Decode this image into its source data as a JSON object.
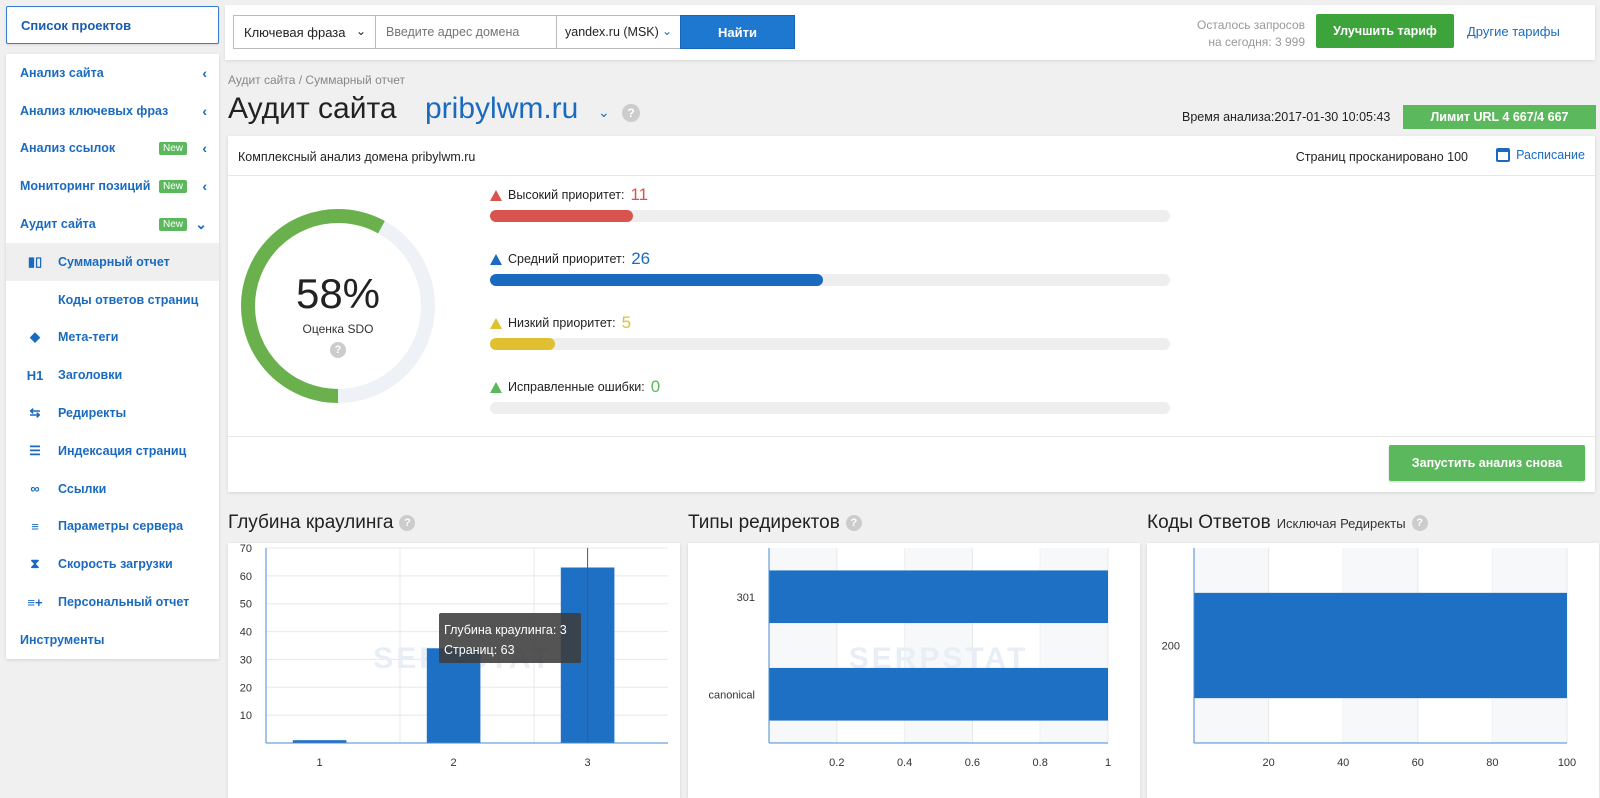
{
  "sidebar": {
    "projects_button": "Список проектов",
    "sections": [
      {
        "label": "Анализ сайта",
        "badge": "",
        "chev": "‹"
      },
      {
        "label": "Анализ ключевых фраз",
        "badge": "",
        "chev": "‹"
      },
      {
        "label": "Анализ ссылок",
        "badge": "New",
        "chev": "‹"
      },
      {
        "label": "Мониторинг позиций",
        "badge": "New",
        "chev": "‹"
      },
      {
        "label": "Аудит сайта",
        "badge": "New",
        "chev": "⌄"
      }
    ],
    "audit_items": [
      {
        "label": "Суммарный отчет",
        "icon": "summary-icon",
        "glyph": "▮▯"
      },
      {
        "label": "Коды ответов страниц",
        "icon": "code-icon",
        "glyph": "</>"
      },
      {
        "label": "Мета-теги",
        "icon": "tag-icon",
        "glyph": "◆"
      },
      {
        "label": "Заголовки",
        "icon": "heading-icon",
        "glyph": "H1"
      },
      {
        "label": "Редиректы",
        "icon": "redirect-icon",
        "glyph": "⇆"
      },
      {
        "label": "Индексация страниц",
        "icon": "list-icon",
        "glyph": "☰"
      },
      {
        "label": "Ссылки",
        "icon": "link-icon",
        "glyph": "∞"
      },
      {
        "label": "Параметры сервера",
        "icon": "server-icon",
        "glyph": "≡"
      },
      {
        "label": "Скорость загрузки",
        "icon": "hourglass-icon",
        "glyph": "⧗"
      },
      {
        "label": "Персональный отчет",
        "icon": "personal-report-icon",
        "glyph": "≡+"
      }
    ],
    "tools": "Инструменты"
  },
  "topbar": {
    "search_type": "Ключевая фраза",
    "search_placeholder": "Введите адрес домена",
    "region": "yandex.ru (MSK)",
    "find_button": "Найти",
    "remaining_line1": "Осталось запросов",
    "remaining_line2": "на сегодня: 3 999",
    "upgrade_button": "Улучшить тариф",
    "other_tariffs": "Другие тарифы"
  },
  "header": {
    "breadcrumb": "Аудит сайта / Суммарный отчет",
    "title": "Аудит сайта",
    "domain": "pribylwm.ru",
    "analysis_time": "Время анализа:2017-01-30 10:05:43",
    "url_limit": "Лимит URL 4 667/4 667"
  },
  "summary": {
    "card_title": "Комплексный анализ домена pribylwm.ru",
    "pages_scanned": "Страниц просканировано 100",
    "schedule": "Расписание",
    "score": "58%",
    "score_value": 58,
    "score_label": "Оценка SDO",
    "priorities": [
      {
        "label": "Высокий приоритет:",
        "count": "11",
        "fraction": 0.21,
        "color": "#d9534f"
      },
      {
        "label": "Средний приоритет:",
        "count": "26",
        "fraction": 0.49,
        "color": "#1a6bc0"
      },
      {
        "label": "Низкий приоритет:",
        "count": "5",
        "fraction": 0.095,
        "color": "#e0c030"
      },
      {
        "label": "Исправленные ошибки:",
        "count": "0",
        "fraction": 0,
        "color": "#5cb85c"
      }
    ],
    "rerun_button": "Запустить анализ снова"
  },
  "charts": {
    "crawl": {
      "title": "Глубина краулинга",
      "tooltip_line1": "Глубина краулинга: 3",
      "tooltip_line2": "Страниц: 63"
    },
    "redirects": {
      "title": "Типы редиректов"
    },
    "codes": {
      "title": "Коды Ответов",
      "subtitle": "Исключая Редиректы"
    },
    "watermark": "SERPSTAT"
  },
  "colors": {
    "accent": "#1a6bc0",
    "green": "#5cb85c",
    "bar": "#1e70c4"
  },
  "chart_data": [
    {
      "type": "bar",
      "title": "Глубина краулинга",
      "categories": [
        "1",
        "2",
        "3"
      ],
      "values": [
        1,
        34,
        63
      ],
      "ylim": [
        0,
        70
      ],
      "yticks": [
        10,
        20,
        30,
        40,
        50,
        60,
        70
      ],
      "grid": true
    },
    {
      "type": "bar",
      "orientation": "horizontal",
      "title": "Типы редиректов",
      "categories": [
        "301",
        "canonical"
      ],
      "values": [
        1,
        1
      ],
      "xlim": [
        0,
        1
      ],
      "xticks": [
        0.2,
        0.4,
        0.6,
        0.8,
        1
      ],
      "grid": true
    },
    {
      "type": "bar",
      "orientation": "horizontal",
      "title": "Коды Ответов",
      "subtitle": "Исключая Редиректы",
      "categories": [
        "200"
      ],
      "values": [
        100
      ],
      "xlim": [
        0,
        100
      ],
      "xticks": [
        20,
        40,
        60,
        80,
        100
      ],
      "grid": true
    }
  ]
}
